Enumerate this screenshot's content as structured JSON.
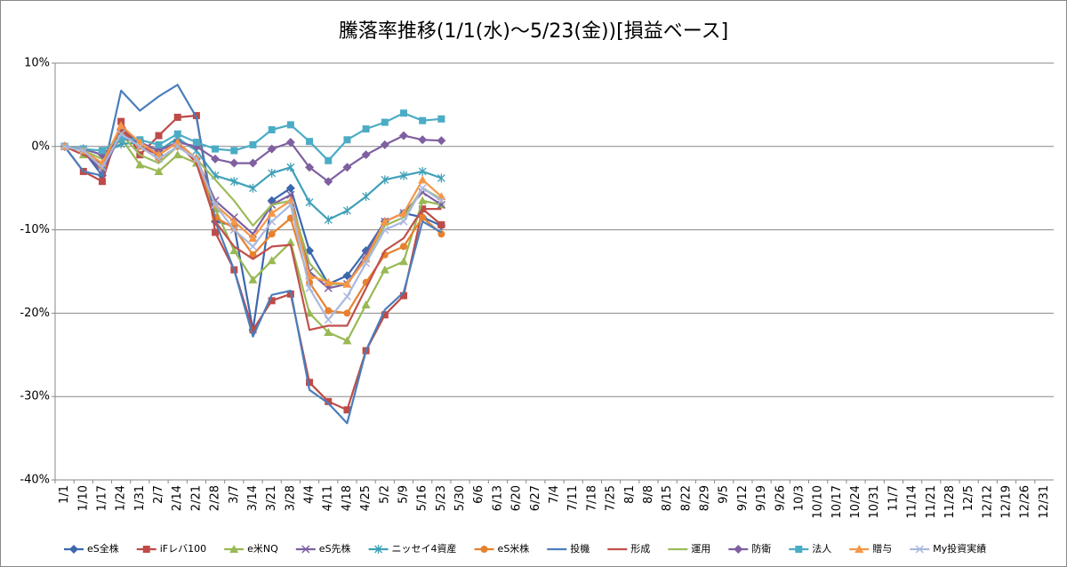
{
  "chart_data": {
    "type": "line",
    "title": "騰落率推移(1/1(水)～5/23(金))[損益ベース]",
    "categories": [
      "1/1",
      "1/10",
      "1/17",
      "1/24",
      "1/31",
      "2/7",
      "2/14",
      "2/21",
      "2/28",
      "3/7",
      "3/14",
      "3/21",
      "3/28",
      "4/4",
      "4/11",
      "4/18",
      "4/25",
      "5/2",
      "5/9",
      "5/16",
      "5/23",
      "5/30",
      "6/6",
      "6/13",
      "6/20",
      "6/27",
      "7/4",
      "7/11",
      "7/18",
      "7/25",
      "8/1",
      "8/8",
      "8/15",
      "8/22",
      "8/29",
      "9/5",
      "9/12",
      "9/19",
      "9/26",
      "10/3",
      "10/10",
      "10/17",
      "10/24",
      "10/31",
      "11/7",
      "11/14",
      "11/21",
      "11/28",
      "12/5",
      "12/12",
      "12/19",
      "12/26",
      "12/31"
    ],
    "ylim": [
      -40,
      10
    ],
    "yticks": [
      {
        "value": -40,
        "label": "-40%"
      },
      {
        "value": -30,
        "label": "-30%"
      },
      {
        "value": -20,
        "label": "-20%"
      },
      {
        "value": -10,
        "label": "-10%"
      },
      {
        "value": 0,
        "label": "0%"
      },
      {
        "value": 10,
        "label": "10%"
      }
    ],
    "grid": true,
    "legend": "bottom",
    "series": [
      {
        "name": "eS全株",
        "color": "#3b68ad",
        "marker": "diamond",
        "values": [
          0,
          -0.5,
          -3.5,
          2,
          0.5,
          -1,
          0.5,
          -1.5,
          -9,
          -9.5,
          -22,
          -6.5,
          -5,
          -12.5,
          -16.5,
          -15.5,
          -12.5,
          -9,
          -8,
          -8.5,
          -9.5,
          null,
          null,
          null,
          null,
          null,
          null,
          null,
          null,
          null,
          null,
          null,
          null,
          null,
          null,
          null,
          null,
          null,
          null,
          null,
          null,
          null,
          null,
          null,
          null,
          null,
          null,
          null,
          null,
          null,
          null,
          null,
          null
        ]
      },
      {
        "name": "iFレバ100",
        "color": "#be4b48",
        "marker": "square",
        "values": [
          0,
          -3,
          -4.2,
          3,
          -1,
          1.3,
          3.5,
          3.7,
          -10.3,
          -14.8,
          -22,
          -18.5,
          -17.7,
          -28.3,
          -30.6,
          -31.6,
          -24.5,
          -20.2,
          -17.9,
          -7.5,
          -9.4,
          null,
          null,
          null,
          null,
          null,
          null,
          null,
          null,
          null,
          null,
          null,
          null,
          null,
          null,
          null,
          null,
          null,
          null,
          null,
          null,
          null,
          null,
          null,
          null,
          null,
          null,
          null,
          null,
          null,
          null,
          null,
          null
        ]
      },
      {
        "name": "e米NQ",
        "color": "#98b954",
        "marker": "triangle",
        "values": [
          0,
          -1,
          -2,
          1,
          -2.2,
          -3,
          -1,
          -2,
          -7.5,
          -12.5,
          -16,
          -13.7,
          -11.5,
          -20,
          -22.3,
          -23.3,
          -19,
          -14.8,
          -13.8,
          -6.5,
          -7,
          null,
          null,
          null,
          null,
          null,
          null,
          null,
          null,
          null,
          null,
          null,
          null,
          null,
          null,
          null,
          null,
          null,
          null,
          null,
          null,
          null,
          null,
          null,
          null,
          null,
          null,
          null,
          null,
          null,
          null,
          null,
          null
        ]
      },
      {
        "name": "eS先株",
        "color": "#7d60a0",
        "marker": "x",
        "values": [
          0,
          -0.5,
          -3,
          1.5,
          0.5,
          -1,
          0.5,
          -1.5,
          -6.5,
          -8.5,
          -10.5,
          -7,
          -5.8,
          -15,
          -17,
          -16.5,
          -13,
          -9,
          -8,
          -5.5,
          -7,
          null,
          null,
          null,
          null,
          null,
          null,
          null,
          null,
          null,
          null,
          null,
          null,
          null,
          null,
          null,
          null,
          null,
          null,
          null,
          null,
          null,
          null,
          null,
          null,
          null,
          null,
          null,
          null,
          null,
          null,
          null,
          null
        ]
      },
      {
        "name": "ニッセイ4資産",
        "color": "#3fa0b8",
        "marker": "star",
        "values": [
          0,
          -0.3,
          -1,
          0.3,
          0.5,
          -0.5,
          1,
          -0.5,
          -3.5,
          -4.2,
          -5,
          -3.2,
          -2.5,
          -6.7,
          -8.8,
          -7.7,
          -6,
          -4,
          -3.5,
          -3,
          -3.8,
          null,
          null,
          null,
          null,
          null,
          null,
          null,
          null,
          null,
          null,
          null,
          null,
          null,
          null,
          null,
          null,
          null,
          null,
          null,
          null,
          null,
          null,
          null,
          null,
          null,
          null,
          null,
          null,
          null,
          null,
          null,
          null
        ]
      },
      {
        "name": "eS米株",
        "color": "#e8812d",
        "marker": "circle",
        "values": [
          0,
          -0.5,
          -2.5,
          1.5,
          0,
          -1.5,
          0,
          -1.5,
          -8.5,
          -9.8,
          -13,
          -10.5,
          -8.6,
          -16.3,
          -19.7,
          -20,
          -16.3,
          -13,
          -12,
          -8.5,
          -10.5,
          null,
          null,
          null,
          null,
          null,
          null,
          null,
          null,
          null,
          null,
          null,
          null,
          null,
          null,
          null,
          null,
          null,
          null,
          null,
          null,
          null,
          null,
          null,
          null,
          null,
          null,
          null,
          null,
          null,
          null,
          null,
          null
        ]
      },
      {
        "name": "投機",
        "color": "#4a7ebb",
        "marker": "none",
        "values": [
          0,
          -3,
          -3.5,
          6.7,
          4.3,
          6,
          7.4,
          3.5,
          -9,
          -14.8,
          -22.8,
          -17.8,
          -17.3,
          -29.2,
          -30.8,
          -33.2,
          -24.5,
          -19.6,
          -17.5,
          -9,
          -10.3,
          null,
          null,
          null,
          null,
          null,
          null,
          null,
          null,
          null,
          null,
          null,
          null,
          null,
          null,
          null,
          null,
          null,
          null,
          null,
          null,
          null,
          null,
          null,
          null,
          null,
          null,
          null,
          null,
          null,
          null,
          null,
          null
        ]
      },
      {
        "name": "形成",
        "color": "#c0504d",
        "marker": "none",
        "values": [
          0,
          -1,
          -2,
          2,
          0,
          -1,
          0.5,
          -2,
          -9,
          -12,
          -13.5,
          -12,
          -11.8,
          -22,
          -21.5,
          -21.5,
          -17,
          -12.5,
          -11,
          -7.5,
          -7.5,
          null,
          null,
          null,
          null,
          null,
          null,
          null,
          null,
          null,
          null,
          null,
          null,
          null,
          null,
          null,
          null,
          null,
          null,
          null,
          null,
          null,
          null,
          null,
          null,
          null,
          null,
          null,
          null,
          null,
          null,
          null,
          null
        ]
      },
      {
        "name": "運用",
        "color": "#9bbb59",
        "marker": "none",
        "values": [
          0,
          -0.5,
          -1.5,
          1.5,
          -1,
          -2,
          0,
          -1.5,
          -4,
          -6.5,
          -9.5,
          -7,
          -6.5,
          -14,
          -16.5,
          -16.5,
          -13.5,
          -9.5,
          -8.5,
          -5,
          -6.3,
          null,
          null,
          null,
          null,
          null,
          null,
          null,
          null,
          null,
          null,
          null,
          null,
          null,
          null,
          null,
          null,
          null,
          null,
          null,
          null,
          null,
          null,
          null,
          null,
          null,
          null,
          null,
          null,
          null,
          null,
          null,
          null
        ]
      },
      {
        "name": "防衛",
        "color": "#7f5fa0",
        "marker": "diamond",
        "values": [
          0,
          -0.3,
          -1,
          1,
          0.5,
          -0.5,
          0.5,
          0,
          -1.5,
          -2,
          -2,
          -0.3,
          0.5,
          -2.5,
          -4.2,
          -2.5,
          -1,
          0.2,
          1.3,
          0.8,
          0.7,
          null,
          null,
          null,
          null,
          null,
          null,
          null,
          null,
          null,
          null,
          null,
          null,
          null,
          null,
          null,
          null,
          null,
          null,
          null,
          null,
          null,
          null,
          null,
          null,
          null,
          null,
          null,
          null,
          null,
          null,
          null,
          null
        ]
      },
      {
        "name": "法人",
        "color": "#4bacc6",
        "marker": "square",
        "values": [
          0,
          -0.3,
          -0.5,
          1,
          0.8,
          0.2,
          1.5,
          0.5,
          -0.3,
          -0.5,
          0.2,
          2,
          2.6,
          0.6,
          -1.7,
          0.8,
          2.1,
          2.9,
          4,
          3.1,
          3.3,
          null,
          null,
          null,
          null,
          null,
          null,
          null,
          null,
          null,
          null,
          null,
          null,
          null,
          null,
          null,
          null,
          null,
          null,
          null,
          null,
          null,
          null,
          null,
          null,
          null,
          null,
          null,
          null,
          null,
          null,
          null,
          null
        ]
      },
      {
        "name": "贈与",
        "color": "#f79646",
        "marker": "triangle",
        "values": [
          0,
          -0.5,
          -2,
          2.5,
          0.5,
          -1,
          0.5,
          -1.5,
          -7,
          -9,
          -11,
          -8,
          -6.5,
          -15.5,
          -16.3,
          -16.5,
          -13.5,
          -9,
          -8,
          -4,
          -6,
          null,
          null,
          null,
          null,
          null,
          null,
          null,
          null,
          null,
          null,
          null,
          null,
          null,
          null,
          null,
          null,
          null,
          null,
          null,
          null,
          null,
          null,
          null,
          null,
          null,
          null,
          null,
          null,
          null,
          null,
          null,
          null
        ]
      },
      {
        "name": "My投資実績",
        "color": "#a9b8dc",
        "marker": "x",
        "values": [
          0,
          -0.5,
          -2.5,
          1.5,
          0,
          -1.5,
          0,
          -1.5,
          -7,
          -10,
          -12,
          -9,
          -7,
          -17,
          -20.8,
          -18,
          -14,
          -10,
          -9,
          -5,
          -6.5,
          null,
          null,
          null,
          null,
          null,
          null,
          null,
          null,
          null,
          null,
          null,
          null,
          null,
          null,
          null,
          null,
          null,
          null,
          null,
          null,
          null,
          null,
          null,
          null,
          null,
          null,
          null,
          null,
          null,
          null,
          null,
          null
        ]
      }
    ]
  }
}
